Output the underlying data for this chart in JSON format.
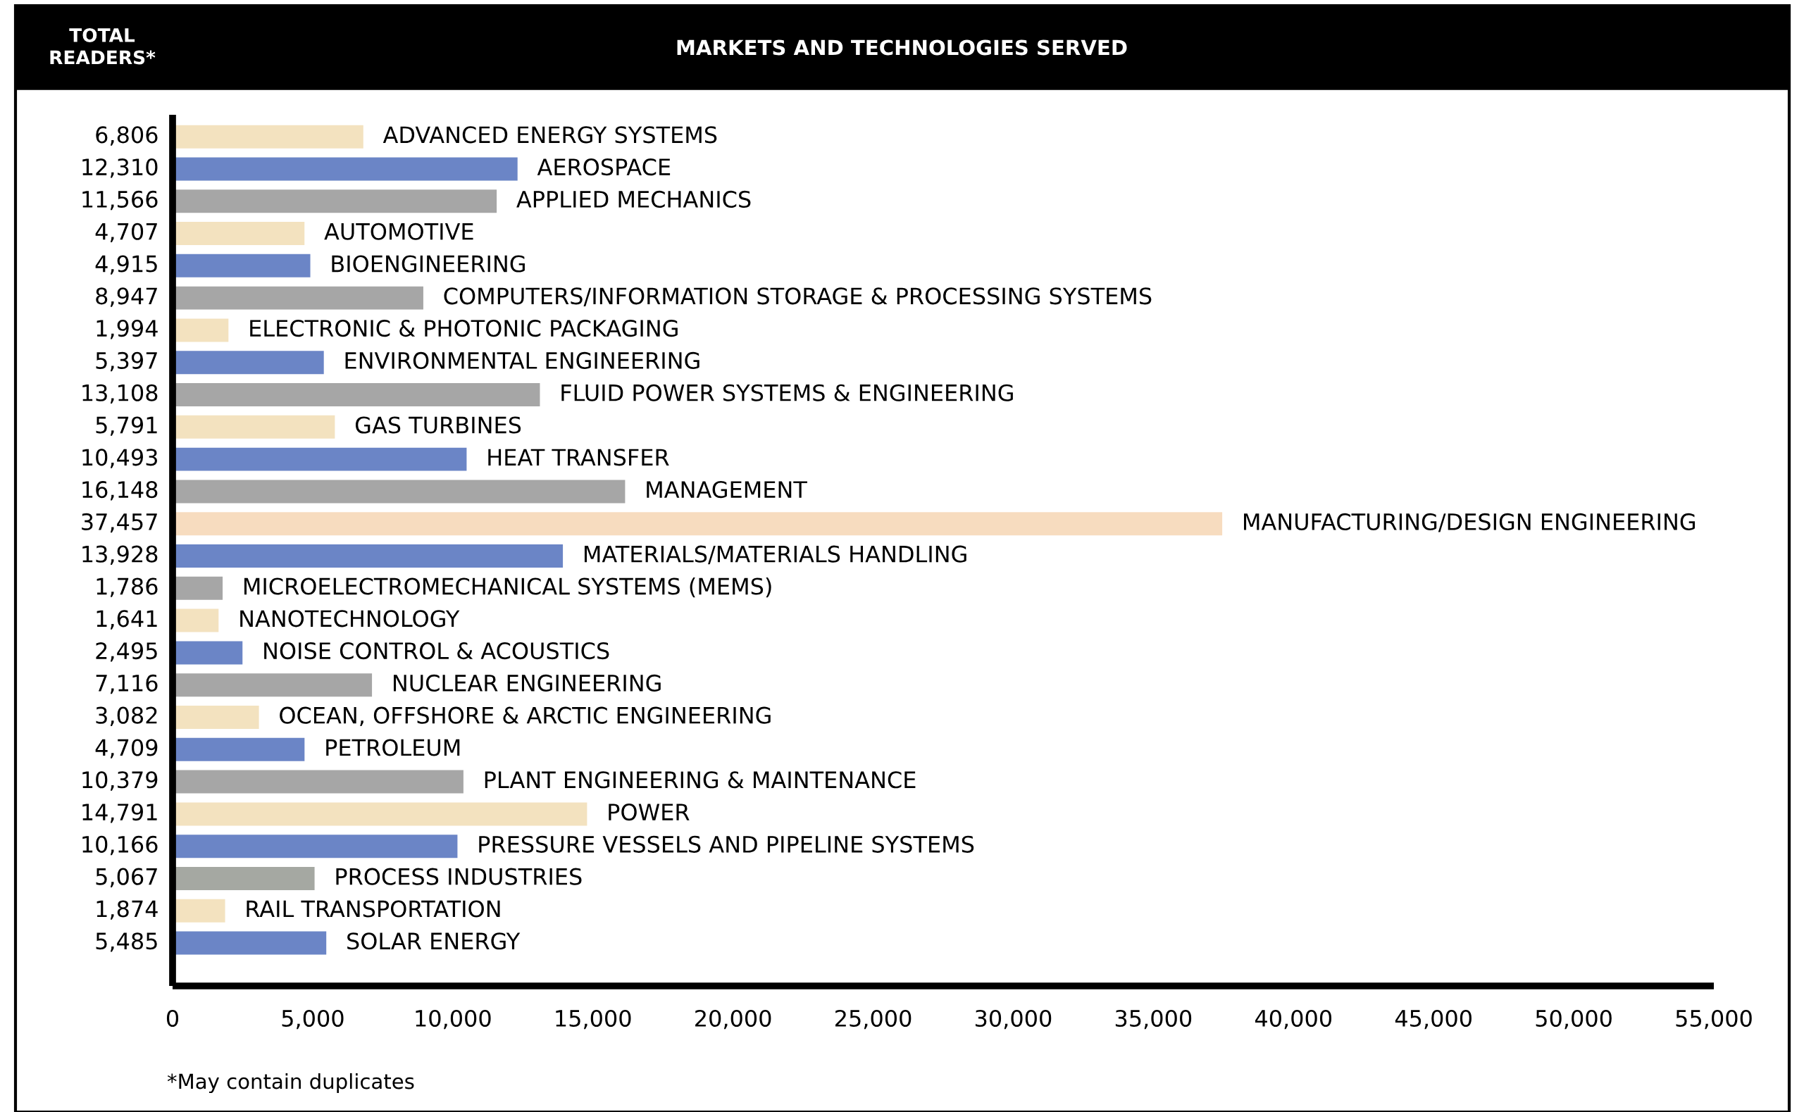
{
  "chart_data": {
    "type": "bar",
    "orientation": "horizontal",
    "title": "MARKETS AND TECHNOLOGIES SERVED",
    "ylabel": "TOTAL\nREADERS*",
    "categories": [
      "ADVANCED ENERGY SYSTEMS",
      "AEROSPACE",
      "APPLIED MECHANICS",
      "AUTOMOTIVE",
      "BIOENGINEERING",
      "COMPUTERS/INFORMATION STORAGE & PROCESSING SYSTEMS",
      "ELECTRONIC & PHOTONIC PACKAGING",
      "ENVIRONMENTAL ENGINEERING",
      "FLUID POWER SYSTEMS & ENGINEERING",
      "GAS TURBINES",
      "HEAT TRANSFER",
      "MANAGEMENT",
      "MANUFACTURING/DESIGN ENGINEERING",
      "MATERIALS/MATERIALS HANDLING",
      "MICROELECTROMECHANICAL SYSTEMS (MEMS)",
      "NANOTECHNOLOGY",
      "NOISE CONTROL & ACOUSTICS",
      "NUCLEAR ENGINEERING",
      "OCEAN, OFFSHORE & ARCTIC ENGINEERING",
      "PETROLEUM",
      "PLANT ENGINEERING & MAINTENANCE",
      "POWER",
      "PRESSURE VESSELS AND PIPELINE SYSTEMS",
      "PROCESS INDUSTRIES",
      "RAIL TRANSPORTATION",
      "SOLAR ENERGY"
    ],
    "values": [
      6806,
      12310,
      11566,
      4707,
      4915,
      8947,
      1994,
      5397,
      13108,
      5791,
      10493,
      16148,
      37457,
      13928,
      1786,
      1641,
      2495,
      7116,
      3082,
      4709,
      10379,
      14791,
      10166,
      5067,
      1874,
      5485
    ],
    "value_labels": [
      "6,806",
      "12,310",
      "11,566",
      "4,707",
      "4,915",
      "8,947",
      "1,994",
      "5,397",
      "13,108",
      "5,791",
      "10,493",
      "16,148",
      "37,457",
      "13,928",
      "1,786",
      "1,641",
      "2,495",
      "7,116",
      "3,082",
      "4,709",
      "10,379",
      "14,791",
      "10,166",
      "5,067",
      "1,874",
      "5,485"
    ],
    "colors": [
      "#f3e2bf",
      "#6b85c6",
      "#a6a6a6",
      "#f3e2bf",
      "#6b85c6",
      "#a6a6a6",
      "#f3e2bf",
      "#6b85c6",
      "#a6a6a6",
      "#f3e2bf",
      "#6b85c6",
      "#a6a6a6",
      "#f7dcbf",
      "#6b85c6",
      "#a6a6a6",
      "#f3e2bf",
      "#6b85c6",
      "#a6a6a6",
      "#f3e2bf",
      "#6b85c6",
      "#a6a6a6",
      "#f3e2bf",
      "#6b85c6",
      "#a5a8a2",
      "#f3e2bf",
      "#6b85c6"
    ],
    "xlim": [
      0,
      55000
    ],
    "xticks": [
      0,
      {
        "value": 5000,
        "label": "5,000"
      },
      {
        "value": 10000,
        "label": "10,000"
      },
      {
        "value": 15000,
        "label": "15,000"
      },
      {
        "value": 20000,
        "label": "20,000"
      },
      {
        "value": 25000,
        "label": "25,000"
      },
      {
        "value": 30000,
        "label": "30,000"
      },
      {
        "value": 35000,
        "label": "35,000"
      },
      {
        "value": 40000,
        "label": "40,000"
      },
      {
        "value": 45000,
        "label": "45,000"
      },
      {
        "value": 50000,
        "label": "50,000"
      },
      {
        "value": 55000,
        "label": "55,000"
      }
    ],
    "tick_labels": "x",
    "annotations": [
      "*May contain duplicates"
    ]
  }
}
